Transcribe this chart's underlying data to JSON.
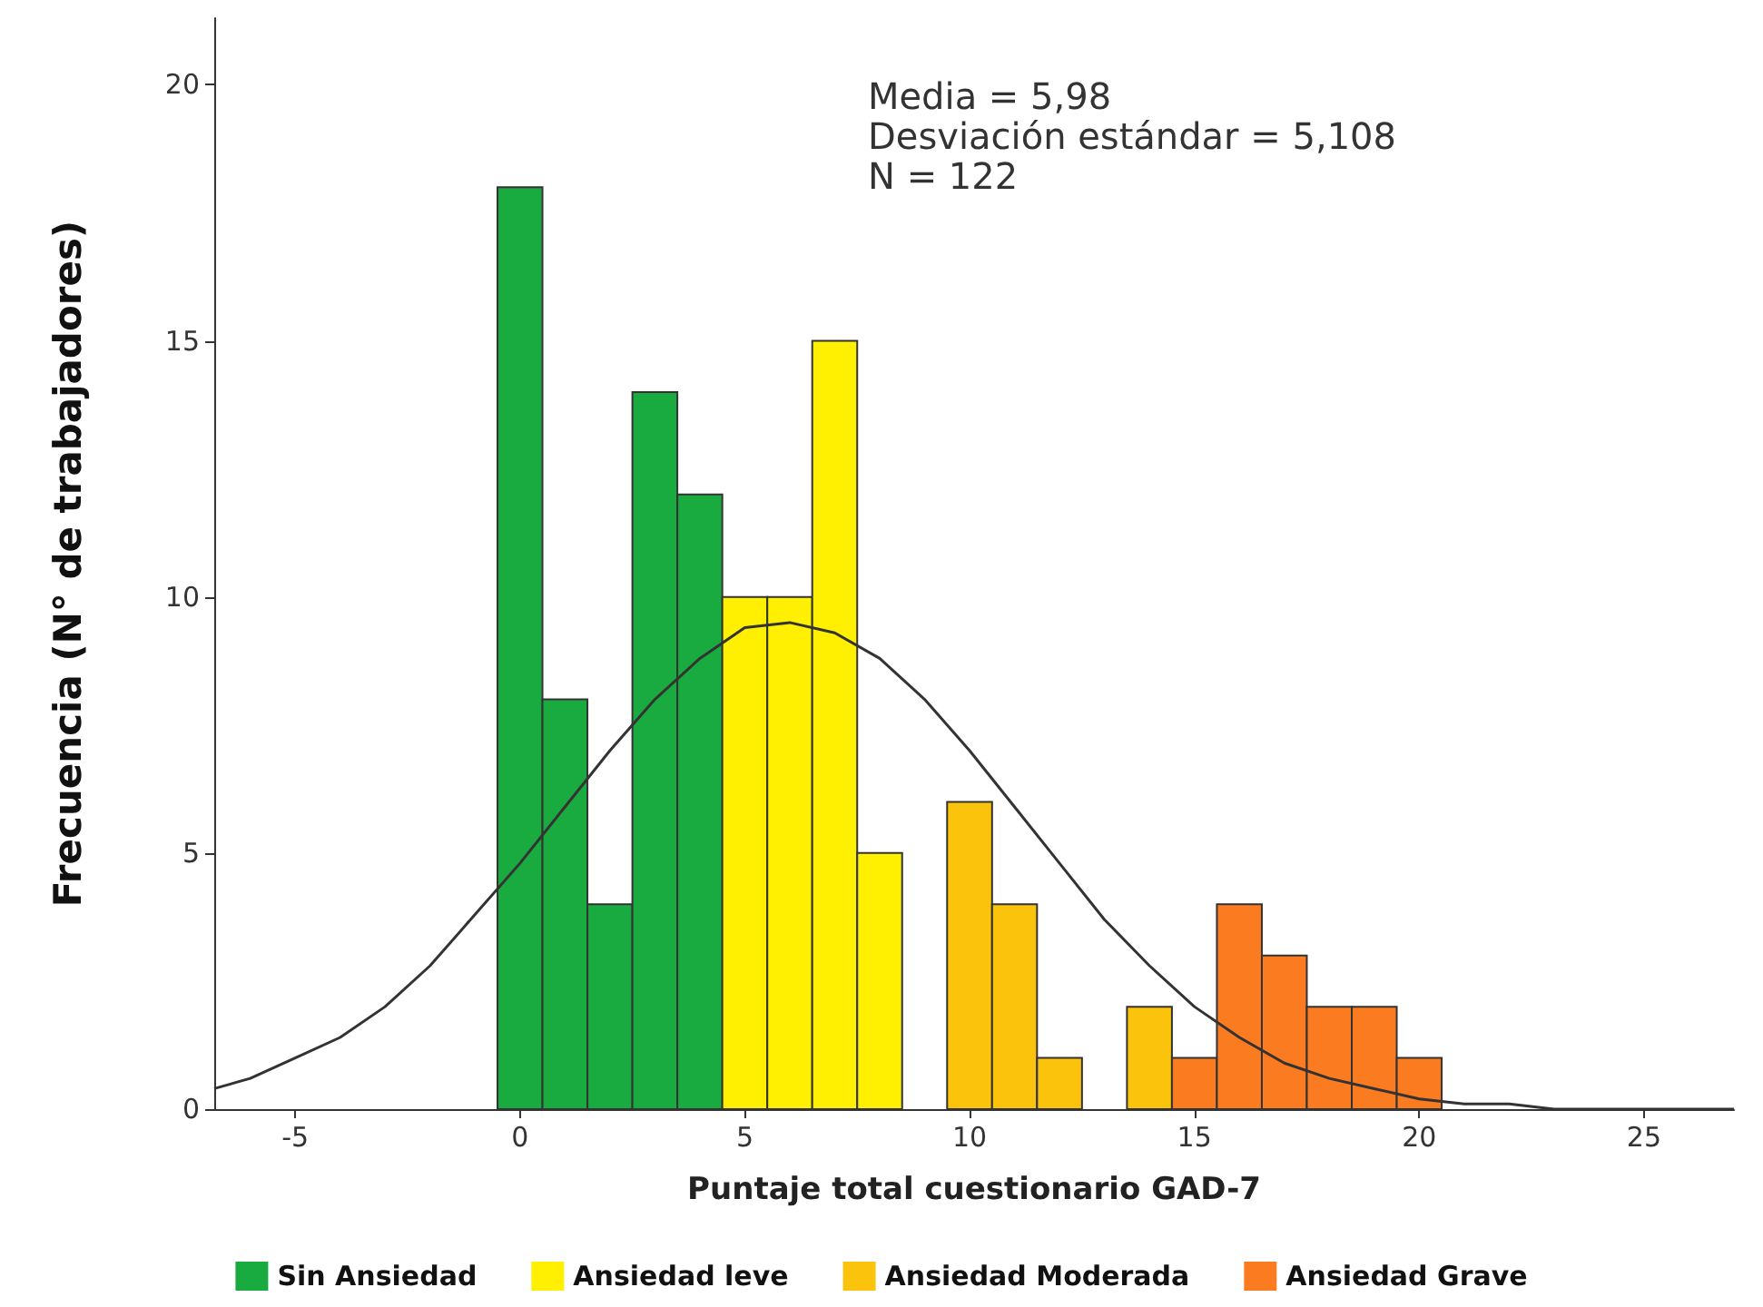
{
  "chart_data": {
    "type": "histogram",
    "xlabel": "Puntaje total cuestionario GAD-7",
    "ylabel": "Frecuencia (N° de trabajadores)",
    "annotations": [
      "Media = 5,98",
      "Desviación estándar = 5,108",
      "N = 122"
    ],
    "bins": [
      -0.5,
      0.5,
      1.5,
      2.5,
      3.5,
      4.5,
      5.5,
      6.5,
      7.5,
      8.5,
      9.5,
      10.5,
      11.5,
      12.5,
      13.5,
      14.5,
      15.5,
      16.5,
      17.5,
      18.5,
      19.5,
      20.5
    ],
    "series": [
      {
        "name": "Sin Ansiedad",
        "color": "#1aab40",
        "values": [
          18,
          8,
          4,
          14,
          12,
          null,
          null,
          null,
          null,
          null,
          null,
          null,
          null,
          null,
          null,
          null,
          null,
          null,
          null,
          null,
          null
        ]
      },
      {
        "name": "Ansiedad leve",
        "color": "#ffef00",
        "values": [
          null,
          null,
          null,
          null,
          null,
          10,
          10,
          15,
          5,
          null,
          null,
          null,
          null,
          null,
          null,
          null,
          null,
          null,
          null,
          null,
          null
        ]
      },
      {
        "name": "Ansiedad Moderada",
        "color": "#fcc30c",
        "values": [
          null,
          null,
          null,
          null,
          null,
          null,
          null,
          null,
          null,
          null,
          6,
          4,
          1,
          null,
          2,
          null,
          null,
          null,
          null,
          null,
          null
        ]
      },
      {
        "name": "Ansiedad Grave",
        "color": "#fb7b20",
        "values": [
          null,
          null,
          null,
          null,
          null,
          null,
          null,
          null,
          null,
          null,
          null,
          null,
          null,
          null,
          null,
          1,
          4,
          3,
          2,
          2,
          1
        ]
      },
      {
        "type": "line",
        "color": "#333333",
        "x": [
          -6.8,
          -6,
          -5,
          -4,
          -3,
          -2,
          -1,
          0,
          1,
          2,
          3,
          4,
          5,
          6,
          7,
          8,
          9,
          10,
          11,
          12,
          13,
          14,
          15,
          16,
          17,
          18,
          19,
          20,
          21,
          22,
          23,
          24,
          25,
          26,
          27
        ],
        "values": [
          0.4,
          0.6,
          1.0,
          1.4,
          2.0,
          2.8,
          3.8,
          4.8,
          5.9,
          7.0,
          8.0,
          8.8,
          9.4,
          9.5,
          9.3,
          8.8,
          8.0,
          7.0,
          5.9,
          4.8,
          3.7,
          2.8,
          2.0,
          1.4,
          0.9,
          0.6,
          0.4,
          0.2,
          0.1,
          0.1,
          0,
          0,
          0,
          0,
          0
        ]
      }
    ],
    "xlim": [
      -6.8,
      27
    ],
    "xticks": [
      -5,
      0,
      5,
      10,
      15,
      20,
      25
    ],
    "ylim": [
      0,
      21.3
    ],
    "yticks": [
      0,
      5,
      10,
      15,
      20
    ],
    "grid": false,
    "legend": "bottom",
    "marker": "none",
    "line_style": "solid"
  }
}
